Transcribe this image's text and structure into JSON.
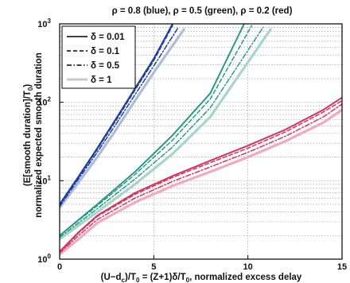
{
  "chart_data": {
    "type": "line",
    "title": "ρ = 0.8 (blue), ρ = 0.5 (green), ρ = 0.2 (red)",
    "xlabel": "(U−d_c)/T_0 = (Z+1)δ/T_0, normalized excess delay",
    "xlabel_parts": {
      "a": "(U−d",
      "a_sub": "c",
      "b": ")/T",
      "b_sub": "0",
      "c": " = (Z+1)δ/T",
      "c_sub": "0",
      "d": ", normalized excess delay"
    },
    "ylabel_line1": "(E[smooth duration]/T",
    "ylabel_line1_sub": "0",
    "ylabel_line1_end": ")",
    "ylabel_line2": "normalized expected smooth duration",
    "xlim": [
      0,
      15
    ],
    "ylim": [
      1,
      1000
    ],
    "yscale": "log",
    "xticks": [
      0,
      5,
      10,
      15
    ],
    "xtick_labels": [
      "0",
      "5",
      "10",
      "15"
    ],
    "yticks": [
      1,
      10,
      100,
      1000
    ],
    "ytick_labels": [
      {
        "base": "10",
        "exp": "0"
      },
      {
        "base": "10",
        "exp": "1"
      },
      {
        "base": "10",
        "exp": "2"
      },
      {
        "base": "10",
        "exp": "3"
      }
    ],
    "grid": true,
    "legend_position": "top-left",
    "legend": [
      {
        "label": "δ = 0.01",
        "style": "solid"
      },
      {
        "label": "δ = 0.1",
        "style": "dashed"
      },
      {
        "label": "δ = 0.5",
        "style": "dashdot"
      },
      {
        "label": "δ = 1",
        "style": "light"
      }
    ],
    "colors": {
      "blue": "#1f3f9a",
      "green": "#2a9a86",
      "red": "#d8345f",
      "light_blue": "#aebcd8",
      "light_green": "#a9d4c8",
      "light_red": "#f0aabb",
      "grid": "#9a9a9a",
      "axis": "#000000"
    },
    "series": [
      {
        "rho": 0.8,
        "delta": 0.01,
        "style": "solid",
        "x": [
          0,
          1,
          2,
          3,
          4,
          5,
          6
        ],
        "y": [
          5.0,
          11.3,
          26,
          62,
          150,
          360,
          1000
        ]
      },
      {
        "rho": 0.8,
        "delta": 0.1,
        "style": "dashed",
        "x": [
          0,
          1,
          2,
          3,
          4,
          5,
          6
        ],
        "y": [
          4.9,
          11.0,
          25,
          59,
          143,
          340,
          950
        ]
      },
      {
        "rho": 0.8,
        "delta": 0.5,
        "style": "dashdot",
        "x": [
          0,
          1,
          2,
          3,
          4,
          5,
          6.3
        ],
        "y": [
          4.7,
          10.5,
          23,
          53,
          125,
          290,
          900
        ]
      },
      {
        "rho": 0.8,
        "delta": 1,
        "style": "light",
        "x": [
          0,
          1,
          2,
          3,
          4,
          5,
          6.6
        ],
        "y": [
          4.5,
          9.5,
          20,
          45,
          105,
          240,
          850
        ]
      },
      {
        "rho": 0.5,
        "delta": 0.01,
        "style": "solid",
        "x": [
          0,
          2,
          4,
          6,
          8,
          9.8
        ],
        "y": [
          2.0,
          5.0,
          13,
          38,
          130,
          1000
        ]
      },
      {
        "rho": 0.5,
        "delta": 0.1,
        "style": "dashed",
        "x": [
          0,
          2,
          4,
          6,
          8,
          10.2
        ],
        "y": [
          2.0,
          4.8,
          12,
          33,
          110,
          950
        ]
      },
      {
        "rho": 0.5,
        "delta": 0.5,
        "style": "dashdot",
        "x": [
          0,
          2,
          4,
          6,
          8,
          10.8
        ],
        "y": [
          1.9,
          4.4,
          10.5,
          27,
          85,
          900
        ]
      },
      {
        "rho": 0.5,
        "delta": 1,
        "style": "light",
        "x": [
          0,
          2,
          4,
          6,
          8,
          11.2
        ],
        "y": [
          1.8,
          4.0,
          9.0,
          22,
          65,
          850
        ]
      },
      {
        "rho": 0.2,
        "delta": 0.01,
        "style": "solid",
        "x": [
          0,
          1,
          2,
          4,
          6,
          8,
          10,
          12,
          14,
          15
        ],
        "y": [
          1.25,
          2.2,
          3.6,
          7.0,
          11.5,
          18,
          28,
          45,
          80,
          115
        ]
      },
      {
        "rho": 0.2,
        "delta": 0.1,
        "style": "dashed",
        "x": [
          0,
          1,
          2,
          4,
          6,
          8,
          10,
          12,
          14,
          15
        ],
        "y": [
          1.22,
          2.15,
          3.5,
          6.7,
          11,
          17,
          26,
          42,
          75,
          105
        ]
      },
      {
        "rho": 0.2,
        "delta": 0.5,
        "style": "dashdot",
        "x": [
          0,
          1,
          2,
          4,
          6,
          8,
          10,
          12,
          14,
          15
        ],
        "y": [
          1.2,
          2.0,
          3.2,
          6.0,
          9.8,
          15,
          23,
          37,
          65,
          95
        ]
      },
      {
        "rho": 0.2,
        "delta": 1,
        "style": "light",
        "x": [
          0,
          1,
          2,
          4,
          6,
          8,
          10,
          12,
          14,
          15
        ],
        "y": [
          1.15,
          1.8,
          2.9,
          5.3,
          8.6,
          13,
          20,
          32,
          55,
          80
        ]
      }
    ]
  }
}
